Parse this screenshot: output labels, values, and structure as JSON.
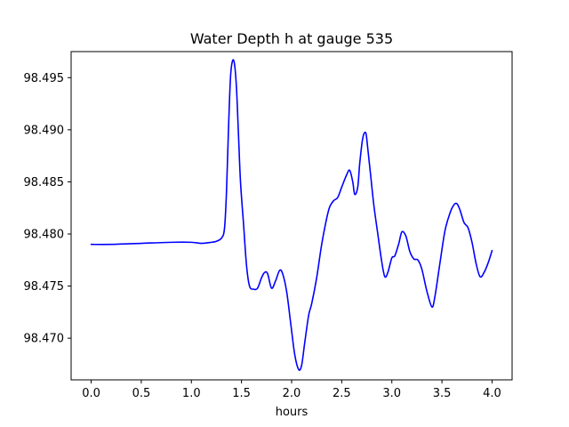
{
  "chart_data": {
    "type": "line",
    "title": "Water Depth h at gauge 535",
    "xlabel": "hours",
    "ylabel": "",
    "xlim": [
      -0.2,
      4.2
    ],
    "ylim": [
      98.466,
      98.4975
    ],
    "xticks": [
      0.0,
      0.5,
      1.0,
      1.5,
      2.0,
      2.5,
      3.0,
      3.5,
      4.0
    ],
    "xtick_labels": [
      "0.0",
      "0.5",
      "1.0",
      "1.5",
      "2.0",
      "2.5",
      "3.0",
      "3.5",
      "4.0"
    ],
    "yticks": [
      98.47,
      98.475,
      98.48,
      98.485,
      98.49,
      98.495
    ],
    "ytick_labels": [
      "98.470",
      "98.475",
      "98.480",
      "98.485",
      "98.490",
      "98.495"
    ],
    "grid": false,
    "series": [
      {
        "color": "#0000ff",
        "x": [
          0.0,
          0.2,
          0.5,
          0.8,
          1.0,
          1.1,
          1.2,
          1.25,
          1.3,
          1.33,
          1.35,
          1.37,
          1.39,
          1.41,
          1.43,
          1.45,
          1.47,
          1.49,
          1.52,
          1.55,
          1.58,
          1.62,
          1.66,
          1.7,
          1.73,
          1.76,
          1.8,
          1.84,
          1.88,
          1.91,
          1.95,
          1.99,
          2.03,
          2.07,
          2.1,
          2.13,
          2.17,
          2.2,
          2.25,
          2.3,
          2.35,
          2.38,
          2.42,
          2.46,
          2.5,
          2.55,
          2.58,
          2.61,
          2.63,
          2.66,
          2.68,
          2.71,
          2.74,
          2.76,
          2.79,
          2.82,
          2.86,
          2.9,
          2.93,
          2.96,
          3.0,
          3.03,
          3.07,
          3.1,
          3.14,
          3.18,
          3.22,
          3.26,
          3.3,
          3.35,
          3.4,
          3.43,
          3.48,
          3.53,
          3.58,
          3.62,
          3.65,
          3.68,
          3.72,
          3.76,
          3.8,
          3.84,
          3.88,
          3.92,
          3.96,
          4.0
        ],
        "y": [
          98.479,
          98.479,
          98.4791,
          98.4792,
          98.4792,
          98.4791,
          98.4792,
          98.4793,
          98.4796,
          98.4805,
          98.484,
          98.49,
          98.495,
          98.4966,
          98.4963,
          98.494,
          98.4895,
          98.485,
          98.481,
          98.477,
          98.475,
          98.4747,
          98.4748,
          98.4758,
          98.4763,
          98.4762,
          98.4748,
          98.4755,
          98.4765,
          98.4762,
          98.4745,
          98.4715,
          98.4685,
          98.467,
          98.4674,
          98.4695,
          98.4722,
          98.4733,
          98.4758,
          98.479,
          98.4815,
          98.4826,
          98.4832,
          98.4835,
          98.4845,
          98.4857,
          98.4861,
          98.485,
          98.4838,
          98.4845,
          98.4868,
          98.4892,
          98.4897,
          98.4882,
          98.4855,
          98.4828,
          98.48,
          98.4773,
          98.4759,
          98.4763,
          98.4777,
          98.4779,
          98.4791,
          98.4802,
          98.4798,
          98.4783,
          98.4776,
          98.4775,
          98.4766,
          98.4745,
          98.473,
          98.474,
          98.4772,
          98.4803,
          98.482,
          98.4828,
          98.4829,
          98.4823,
          98.4811,
          98.4806,
          98.4792,
          98.4772,
          98.4759,
          98.4763,
          98.4772,
          98.4784
        ]
      }
    ]
  }
}
